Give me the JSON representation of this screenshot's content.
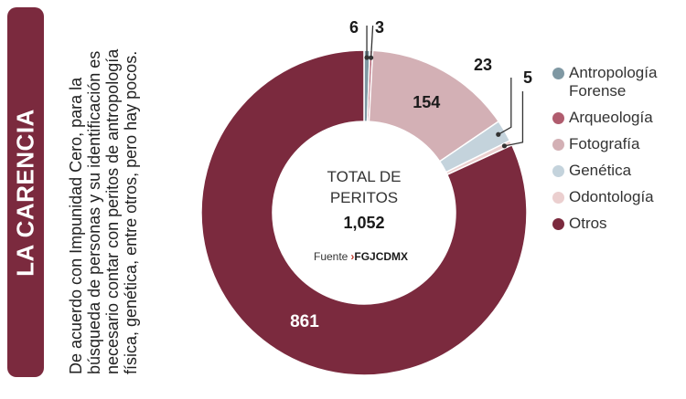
{
  "header": {
    "title": "LA CARENCIA",
    "description": "De acuerdo con Impunidad Cero, para la búsqueda de personas y su identificación es necesario contar con peritos de antropología física, genética, entre otros, pero hay pocos."
  },
  "chart_data": {
    "type": "pie",
    "variant": "donut",
    "center_label": "TOTAL DE PERITOS",
    "center_total": "1,052",
    "source_prefix": "Fuente",
    "source_name": "FGJCDMX",
    "series": [
      {
        "name": "Antropología Forense",
        "value": 6,
        "color": "#7f98a3"
      },
      {
        "name": "Arqueología",
        "value": 3,
        "color": "#b05c6e"
      },
      {
        "name": "Fotografía",
        "value": 154,
        "color": "#d3b0b5"
      },
      {
        "name": "Genética",
        "value": 23,
        "color": "#c4d3dc"
      },
      {
        "name": "Odontología",
        "value": 5,
        "color": "#ebcfcf"
      },
      {
        "name": "Otros",
        "value": 861,
        "color": "#7b2a3e"
      }
    ],
    "legend_position": "right"
  },
  "colors": {
    "accent": "#7b2a3e",
    "source_arrow": "#c0392b"
  }
}
